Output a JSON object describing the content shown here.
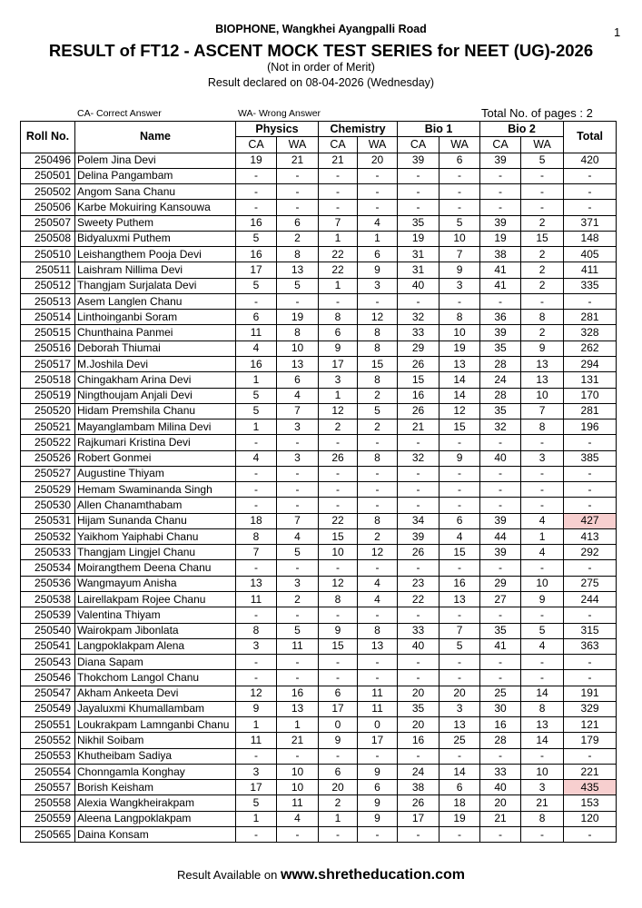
{
  "header": {
    "page_number": "1",
    "institute": "BIOPHONE, Wangkhei Ayangpalli Road",
    "title": "RESULT of  FT12 - ASCENT MOCK TEST SERIES for NEET (UG)-2026",
    "note": "(Not in order of Merit)",
    "declared": "Result declared on 08-04-2026 (Wednesday)"
  },
  "legend": {
    "ca": "CA- Correct Answer",
    "wa": "WA- Wrong Answer",
    "pages": "Total No. of pages : 2"
  },
  "table": {
    "header": {
      "roll": "Roll No.",
      "name": "Name",
      "groups": [
        "Physics",
        "Chemistry",
        "Bio 1",
        "Bio 2"
      ],
      "sub": [
        "CA",
        "WA",
        "CA",
        "WA",
        "CA",
        "WA",
        "CA",
        "WA"
      ],
      "total": "Total"
    },
    "highlight": {
      "color": "#f7cfcf",
      "rows": [
        23,
        40
      ]
    },
    "rows": [
      [
        250496,
        "Polem Jina Devi",
        19,
        21,
        21,
        20,
        39,
        6,
        39,
        5,
        420
      ],
      [
        250501,
        "Delina Pangambam",
        "-",
        "-",
        "-",
        "-",
        "-",
        "-",
        "-",
        "-",
        "-"
      ],
      [
        250502,
        "Angom Sana Chanu",
        "-",
        "-",
        "-",
        "-",
        "-",
        "-",
        "-",
        "-",
        "-"
      ],
      [
        250506,
        "Karbe Mokuiring Kansouwa",
        "-",
        "-",
        "-",
        "-",
        "-",
        "-",
        "-",
        "-",
        "-"
      ],
      [
        250507,
        "Sweety Puthem",
        16,
        6,
        7,
        4,
        35,
        5,
        39,
        2,
        371
      ],
      [
        250508,
        "Bidyaluxmi Puthem",
        5,
        2,
        1,
        1,
        19,
        10,
        19,
        15,
        148
      ],
      [
        250510,
        "Leishangthem Pooja Devi",
        16,
        8,
        22,
        6,
        31,
        7,
        38,
        2,
        405
      ],
      [
        250511,
        "Laishram Nillima Devi",
        17,
        13,
        22,
        9,
        31,
        9,
        41,
        2,
        411
      ],
      [
        250512,
        "Thangjam Surjalata Devi",
        5,
        5,
        1,
        3,
        40,
        3,
        41,
        2,
        335
      ],
      [
        250513,
        "Asem Langlen Chanu",
        "-",
        "-",
        "-",
        "-",
        "-",
        "-",
        "-",
        "-",
        "-"
      ],
      [
        250514,
        "Linthoinganbi Soram",
        6,
        19,
        8,
        12,
        32,
        8,
        36,
        8,
        281
      ],
      [
        250515,
        "Chunthaina Panmei",
        11,
        8,
        6,
        8,
        33,
        10,
        39,
        2,
        328
      ],
      [
        250516,
        "Deborah Thiumai",
        4,
        10,
        9,
        8,
        29,
        19,
        35,
        9,
        262
      ],
      [
        250517,
        "M.Joshila Devi",
        16,
        13,
        17,
        15,
        26,
        13,
        28,
        13,
        294
      ],
      [
        250518,
        "Chingakham Arina Devi",
        1,
        6,
        3,
        8,
        15,
        14,
        24,
        13,
        131
      ],
      [
        250519,
        "Ningthoujam Anjali Devi",
        5,
        4,
        1,
        2,
        16,
        14,
        28,
        10,
        170
      ],
      [
        250520,
        "Hidam Premshila Chanu",
        5,
        7,
        12,
        5,
        26,
        12,
        35,
        7,
        281
      ],
      [
        250521,
        "Mayanglambam Milina Devi",
        1,
        3,
        2,
        2,
        21,
        15,
        32,
        8,
        196
      ],
      [
        250522,
        "Rajkumari Kristina Devi",
        "-",
        "-",
        "-",
        "-",
        "-",
        "-",
        "-",
        "-",
        "-"
      ],
      [
        250526,
        "Robert Gonmei",
        4,
        3,
        26,
        8,
        32,
        9,
        40,
        3,
        385
      ],
      [
        250527,
        "Augustine Thiyam",
        "-",
        "-",
        "-",
        "-",
        "-",
        "-",
        "-",
        "-",
        "-"
      ],
      [
        250529,
        "Hemam Swaminanda Singh",
        "-",
        "-",
        "-",
        "-",
        "-",
        "-",
        "-",
        "-",
        "-"
      ],
      [
        250530,
        "Allen Chanamthabam",
        "-",
        "-",
        "-",
        "-",
        "-",
        "-",
        "-",
        "-",
        "-"
      ],
      [
        250531,
        "Hijam Sunanda Chanu",
        18,
        7,
        22,
        8,
        34,
        6,
        39,
        4,
        427
      ],
      [
        250532,
        "Yaikhom Yaiphabi Chanu",
        8,
        4,
        15,
        2,
        39,
        4,
        44,
        1,
        413
      ],
      [
        250533,
        "Thangjam Lingjel Chanu",
        7,
        5,
        10,
        12,
        26,
        15,
        39,
        4,
        292
      ],
      [
        250534,
        "Moirangthem Deena Chanu",
        "-",
        "-",
        "-",
        "-",
        "-",
        "-",
        "-",
        "-",
        "-"
      ],
      [
        250536,
        "Wangmayum Anisha",
        13,
        3,
        12,
        4,
        23,
        16,
        29,
        10,
        275
      ],
      [
        250538,
        "Lairellakpam Rojee Chanu",
        11,
        2,
        8,
        4,
        22,
        13,
        27,
        9,
        244
      ],
      [
        250539,
        "Valentina Thiyam",
        "-",
        "-",
        "-",
        "-",
        "-",
        "-",
        "-",
        "-",
        "-"
      ],
      [
        250540,
        "Wairokpam Jibonlata",
        8,
        5,
        9,
        8,
        33,
        7,
        35,
        5,
        315
      ],
      [
        250541,
        "Langpoklakpam Alena",
        3,
        11,
        15,
        13,
        40,
        5,
        41,
        4,
        363
      ],
      [
        250543,
        "Diana Sapam",
        "-",
        "-",
        "-",
        "-",
        "-",
        "-",
        "-",
        "-",
        "-"
      ],
      [
        250546,
        "Thokchom Langol Chanu",
        "-",
        "-",
        "-",
        "-",
        "-",
        "-",
        "-",
        "-",
        "-"
      ],
      [
        250547,
        "Akham Ankeeta Devi",
        12,
        16,
        6,
        11,
        20,
        20,
        25,
        14,
        191
      ],
      [
        250549,
        "Jayaluxmi Khumallambam",
        9,
        13,
        17,
        11,
        35,
        3,
        30,
        8,
        329
      ],
      [
        250551,
        "Loukrakpam Lamnganbi Chanu",
        1,
        1,
        0,
        0,
        20,
        13,
        16,
        13,
        121
      ],
      [
        250552,
        "Nikhil Soibam",
        11,
        21,
        9,
        17,
        16,
        25,
        28,
        14,
        179
      ],
      [
        250553,
        "Khutheibam Sadiya",
        "-",
        "-",
        "-",
        "-",
        "-",
        "-",
        "-",
        "-",
        "-"
      ],
      [
        250554,
        "Chonngamla Konghay",
        3,
        10,
        6,
        9,
        24,
        14,
        33,
        10,
        221
      ],
      [
        250557,
        "Borish Keisham",
        17,
        10,
        20,
        6,
        38,
        6,
        40,
        3,
        435
      ],
      [
        250558,
        "Alexia Wangkheirakpam",
        5,
        11,
        2,
        9,
        26,
        18,
        20,
        21,
        153
      ],
      [
        250559,
        "Aleena Langpoklakpam",
        1,
        4,
        1,
        9,
        17,
        19,
        21,
        8,
        120
      ],
      [
        250565,
        "Daina Konsam",
        "-",
        "-",
        "-",
        "-",
        "-",
        "-",
        "-",
        "-",
        "-"
      ]
    ]
  },
  "footer": {
    "prefix": "Result Available on",
    "site": "www.shretheducation.com"
  }
}
